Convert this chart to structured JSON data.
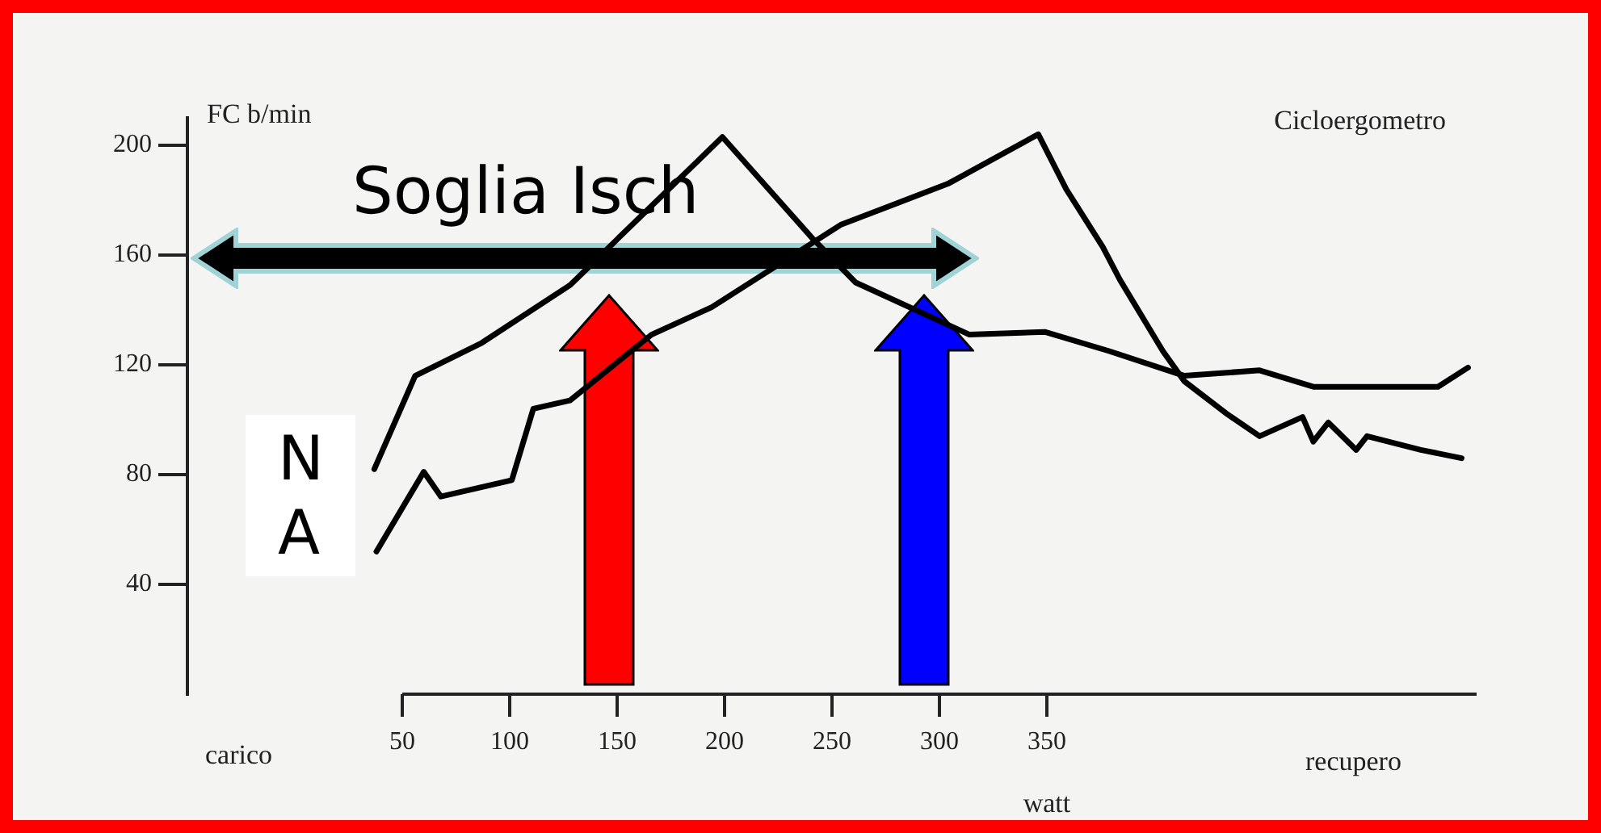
{
  "chart_data": {
    "type": "line",
    "title": "Cicloergometro",
    "ylabel": "FC b/min",
    "xlabel": "watt",
    "annotations": [
      "Soglia Isch",
      "N\nA",
      "carico",
      "recupero"
    ],
    "xlim": [
      -50,
      550
    ],
    "xticks": [
      50,
      100,
      150,
      200,
      250,
      300,
      350
    ],
    "ylim": [
      0,
      210
    ],
    "yticks": [
      40,
      80,
      120,
      160,
      200
    ],
    "grid": false,
    "legend": false,
    "marker": "none",
    "line_style": "solid",
    "series": [
      {
        "color": "#000000",
        "x": [
          37,
          56,
          87,
          128,
          199,
          241,
          261,
          314,
          349,
          379,
          414,
          449,
          474,
          509,
          532,
          546
        ],
        "values": [
          82,
          116,
          128,
          149,
          203,
          166,
          150,
          131,
          132,
          125,
          116,
          118,
          112,
          112,
          112,
          119
        ]
      },
      {
        "color": "#000000",
        "x": [
          38,
          60,
          68,
          101,
          111,
          128,
          166,
          194,
          254,
          304,
          346,
          359,
          376,
          384,
          404,
          414,
          434,
          449,
          469,
          474,
          481,
          494,
          499,
          524,
          543
        ],
        "values": [
          52,
          81,
          72,
          78,
          104,
          107,
          131,
          141,
          171,
          186,
          204,
          184,
          163,
          151,
          125,
          114,
          102,
          94,
          101,
          92,
          99,
          89,
          94,
          89,
          86
        ]
      }
    ]
  }
}
